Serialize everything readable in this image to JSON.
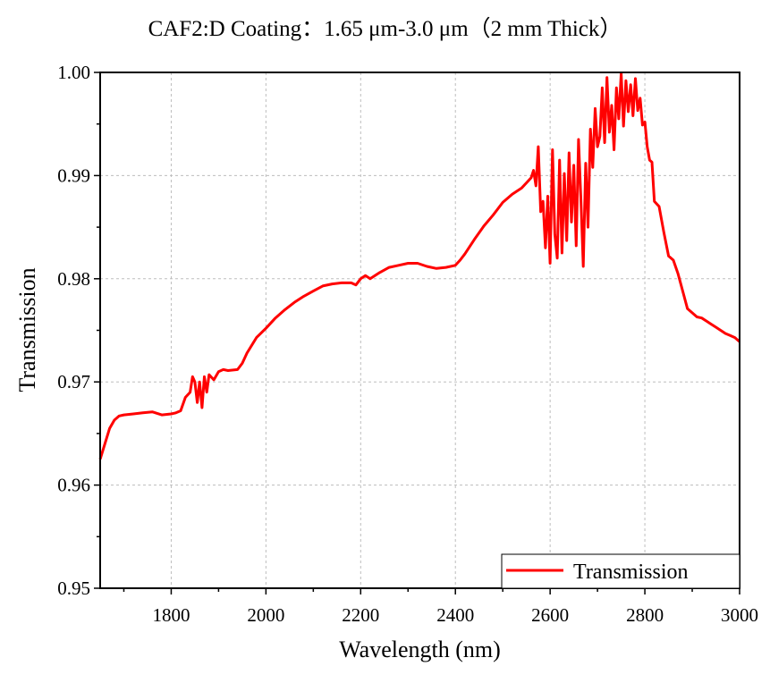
{
  "chart_data": {
    "type": "line",
    "title": "CAF2:D Coating：1.65 μm-3.0 μm（2 mm Thick）",
    "xlabel": "Wavelength (nm)",
    "ylabel": "Transmission",
    "xlim": [
      1650,
      3000
    ],
    "ylim": [
      0.95,
      1.0
    ],
    "xticks": [
      1800,
      2000,
      2200,
      2400,
      2600,
      2800,
      3000
    ],
    "xtick_labels": [
      "1800",
      "2000",
      "2200",
      "2400",
      "2600",
      "2800",
      "3000"
    ],
    "yticks": [
      0.95,
      0.96,
      0.97,
      0.98,
      0.99,
      1.0
    ],
    "ytick_labels": [
      "0.95",
      "0.96",
      "0.97",
      "0.98",
      "0.99",
      "1.00"
    ],
    "grid": true,
    "legend_position": "bottom-right",
    "series": [
      {
        "name": "Transmission",
        "color": "#ff0000",
        "x": [
          1650,
          1660,
          1670,
          1680,
          1690,
          1700,
          1720,
          1740,
          1760,
          1780,
          1800,
          1810,
          1820,
          1830,
          1840,
          1845,
          1850,
          1855,
          1860,
          1865,
          1870,
          1875,
          1880,
          1890,
          1900,
          1910,
          1920,
          1940,
          1950,
          1960,
          1980,
          2000,
          2020,
          2040,
          2060,
          2080,
          2100,
          2120,
          2140,
          2160,
          2180,
          2190,
          2200,
          2210,
          2220,
          2240,
          2260,
          2280,
          2300,
          2320,
          2340,
          2360,
          2380,
          2400,
          2410,
          2420,
          2440,
          2460,
          2480,
          2500,
          2520,
          2540,
          2550,
          2560,
          2565,
          2570,
          2575,
          2580,
          2585,
          2590,
          2595,
          2600,
          2605,
          2610,
          2615,
          2620,
          2625,
          2630,
          2635,
          2640,
          2645,
          2650,
          2655,
          2660,
          2665,
          2670,
          2675,
          2680,
          2685,
          2690,
          2695,
          2700,
          2705,
          2710,
          2715,
          2720,
          2725,
          2730,
          2735,
          2740,
          2745,
          2750,
          2755,
          2760,
          2765,
          2770,
          2775,
          2780,
          2785,
          2790,
          2795,
          2800,
          2805,
          2810,
          2815,
          2820,
          2830,
          2840,
          2850,
          2860,
          2870,
          2880,
          2890,
          2900,
          2910,
          2920,
          2930,
          2940,
          2950,
          2960,
          2970,
          2980,
          2990,
          3000
        ],
        "y": [
          0.9625,
          0.964,
          0.9655,
          0.9663,
          0.9667,
          0.9668,
          0.9669,
          0.967,
          0.9671,
          0.9668,
          0.9669,
          0.967,
          0.9672,
          0.9685,
          0.969,
          0.9705,
          0.97,
          0.968,
          0.97,
          0.9675,
          0.9705,
          0.969,
          0.9707,
          0.9702,
          0.971,
          0.9712,
          0.9711,
          0.9712,
          0.9718,
          0.9728,
          0.9743,
          0.9752,
          0.9762,
          0.977,
          0.9777,
          0.9783,
          0.9788,
          0.9793,
          0.9795,
          0.9796,
          0.9796,
          0.9794,
          0.98,
          0.9803,
          0.98,
          0.9806,
          0.9811,
          0.9813,
          0.9815,
          0.9815,
          0.9812,
          0.981,
          0.9811,
          0.9813,
          0.9818,
          0.9824,
          0.9838,
          0.9851,
          0.9862,
          0.9874,
          0.9882,
          0.9888,
          0.9893,
          0.9898,
          0.9905,
          0.989,
          0.9928,
          0.9865,
          0.9875,
          0.983,
          0.988,
          0.9815,
          0.9925,
          0.9843,
          0.982,
          0.9915,
          0.9825,
          0.9902,
          0.9837,
          0.9922,
          0.9855,
          0.991,
          0.9832,
          0.9935,
          0.9876,
          0.9812,
          0.9912,
          0.985,
          0.9945,
          0.9908,
          0.9965,
          0.9928,
          0.9938,
          0.9985,
          0.9932,
          0.9995,
          0.9942,
          0.9968,
          0.9925,
          0.9985,
          0.9955,
          0.9999,
          0.9948,
          0.9992,
          0.9962,
          0.9988,
          0.9958,
          0.9994,
          0.9963,
          0.9975,
          0.9949,
          0.9952,
          0.9928,
          0.9915,
          0.9913,
          0.9875,
          0.987,
          0.9845,
          0.9822,
          0.9818,
          0.9805,
          0.9788,
          0.9771,
          0.9767,
          0.9763,
          0.9762,
          0.9759,
          0.9756,
          0.9753,
          0.975,
          0.9747,
          0.9745,
          0.9743,
          0.9739
        ]
      }
    ]
  }
}
